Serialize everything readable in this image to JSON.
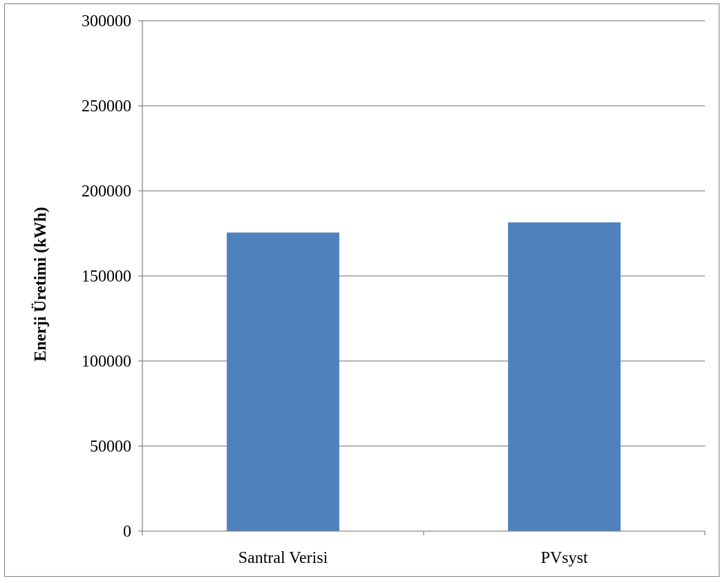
{
  "chart_data": {
    "type": "bar",
    "title": "",
    "xlabel": "",
    "ylabel": "Enerji Üretimi (kWh)",
    "categories": [
      "Santral Verisi",
      "PVsyst"
    ],
    "values": [
      175500,
      181500
    ],
    "ylim": [
      0,
      300000
    ],
    "yticks": [
      0,
      50000,
      100000,
      150000,
      200000,
      250000,
      300000
    ],
    "ytick_labels": [
      "0",
      "50000",
      "100000",
      "150000",
      "200000",
      "250000",
      "300000"
    ],
    "grid": true,
    "legend": "none",
    "bar_color": "#4f81bd",
    "grid_color": "#868686",
    "axis_color": "#868686"
  }
}
